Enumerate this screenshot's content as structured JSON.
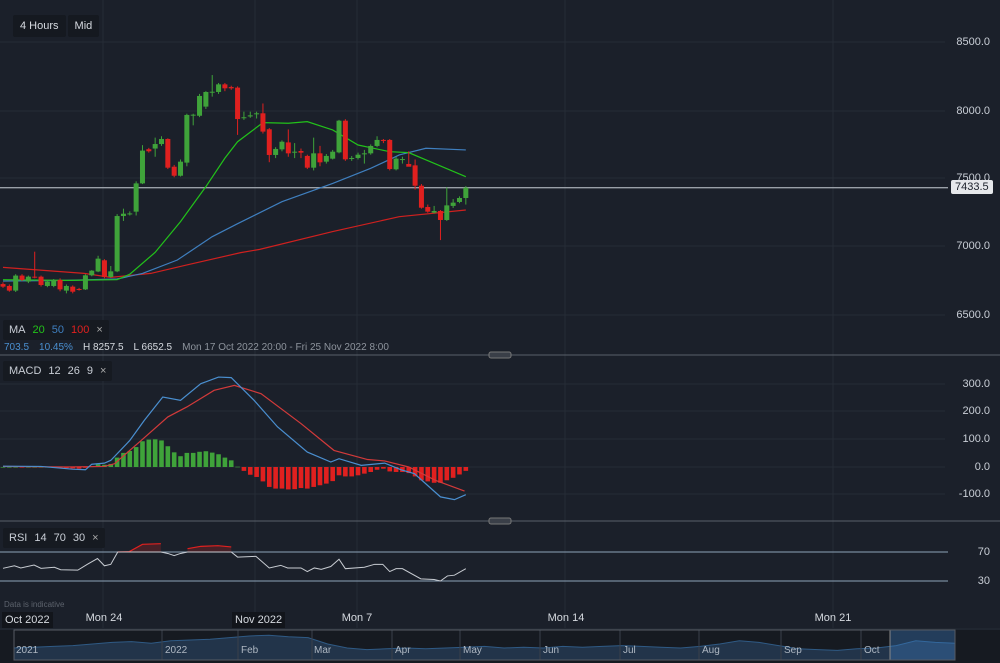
{
  "toolbar": {
    "interval": "4 Hours",
    "price_type": "Mid"
  },
  "ma_legend": {
    "label": "MA",
    "p1": "20",
    "p2": "50",
    "p3": "100",
    "close": "×"
  },
  "info": {
    "change": "703.5",
    "change_pct": "10.45%",
    "high": "H 8257.5",
    "low": "L 6652.5",
    "range": "Mon 17 Oct 2022 20:00 - Fri 25 Nov 2022 8:00"
  },
  "macd_legend": {
    "label": "MACD",
    "fast": "12",
    "slow": "26",
    "signal": "9",
    "close": "×"
  },
  "rsi_legend": {
    "label": "RSI",
    "period": "14",
    "upper": "70",
    "lower": "30",
    "close": "×"
  },
  "disclaimer": "Data is indicative",
  "price_axis": [
    "8500.0",
    "8000.0",
    "7500.0",
    "7000.0",
    "6500.0"
  ],
  "current_price": "7433.5",
  "macd_axis": [
    "300.0",
    "200.0",
    "100.0",
    "0.0",
    "-100.0"
  ],
  "rsi_axis": [
    "70",
    "30"
  ],
  "time_axis": [
    "Oct 2022",
    "Mon 24",
    "Nov 2022",
    "Mon 7",
    "Mon 14",
    "Mon 21"
  ],
  "navigator_labels": [
    "2021",
    "2022",
    "Feb",
    "Mar",
    "Apr",
    "May",
    "Jun",
    "Jul",
    "Aug",
    "Sep",
    "Oct"
  ],
  "colors": {
    "up": "#3fa33a",
    "down": "#e0201f",
    "ma20": "#22c21a",
    "ma50": "#3f7fbf",
    "ma100": "#d0201f",
    "macd": "#4a8fd0",
    "signal": "#d23a3a",
    "rsi": "#c8ccd2",
    "bg": "#1b202a"
  },
  "chart_data": {
    "type": "candlestick",
    "candles": [
      [
        6728,
        6740,
        6700,
        6709
      ],
      [
        6714,
        6725,
        6672,
        6680
      ],
      [
        6680,
        6800,
        6670,
        6790
      ],
      [
        6790,
        6800,
        6750,
        6758
      ],
      [
        6746,
        6790,
        6735,
        6782
      ],
      [
        6782,
        6965,
        6770,
        6778
      ],
      [
        6782,
        6790,
        6710,
        6721
      ],
      [
        6714,
        6755,
        6705,
        6746
      ],
      [
        6714,
        6765,
        6705,
        6758
      ],
      [
        6758,
        6770,
        6675,
        6689
      ],
      [
        6680,
        6725,
        6660,
        6714
      ],
      [
        6709,
        6718,
        6660,
        6672
      ],
      [
        6692,
        6700,
        6680,
        6689
      ],
      [
        6689,
        6800,
        6685,
        6792
      ],
      [
        6792,
        6830,
        6785,
        6826
      ],
      [
        6820,
        6935,
        6815,
        6914
      ],
      [
        6902,
        6910,
        6770,
        6780
      ],
      [
        6780,
        6860,
        6775,
        6821
      ],
      [
        6821,
        7240,
        6815,
        7226
      ],
      [
        7226,
        7280,
        7190,
        7243
      ],
      [
        7243,
        7260,
        7230,
        7245
      ],
      [
        7258,
        7480,
        7230,
        7465
      ],
      [
        7465,
        7745,
        7460,
        7705
      ],
      [
        7715,
        7725,
        7690,
        7700
      ],
      [
        7720,
        7800,
        7660,
        7753
      ],
      [
        7753,
        7810,
        7740,
        7790
      ],
      [
        7790,
        7795,
        7570,
        7580
      ],
      [
        7587,
        7600,
        7510,
        7521
      ],
      [
        7521,
        7640,
        7515,
        7624
      ],
      [
        7617,
        7975,
        7590,
        7966
      ],
      [
        7966,
        7975,
        7890,
        7968
      ],
      [
        7960,
        8120,
        7950,
        8105
      ],
      [
        8027,
        8140,
        8010,
        8134
      ],
      [
        8134,
        8258,
        8100,
        8136
      ],
      [
        8134,
        8200,
        8120,
        8190
      ],
      [
        8190,
        8200,
        8140,
        8161
      ],
      [
        8170,
        8180,
        8150,
        8161
      ],
      [
        8166,
        8175,
        7820,
        7936
      ],
      [
        7945,
        7990,
        7930,
        7949
      ],
      [
        7955,
        7990,
        7945,
        7963
      ],
      [
        7978,
        7990,
        7940,
        7978
      ],
      [
        7978,
        8050,
        7830,
        7844
      ],
      [
        7861,
        7870,
        7620,
        7673
      ],
      [
        7673,
        7730,
        7650,
        7717
      ],
      [
        7714,
        7780,
        7700,
        7770
      ],
      [
        7765,
        7860,
        7660,
        7685
      ],
      [
        7697,
        7760,
        7650,
        7697
      ],
      [
        7702,
        7720,
        7650,
        7690
      ],
      [
        7666,
        7675,
        7570,
        7580
      ],
      [
        7580,
        7800,
        7560,
        7685
      ],
      [
        7685,
        7740,
        7590,
        7619
      ],
      [
        7624,
        7680,
        7610,
        7666
      ],
      [
        7646,
        7710,
        7640,
        7697
      ],
      [
        7692,
        7930,
        7685,
        7924
      ],
      [
        7924,
        7935,
        7630,
        7641
      ],
      [
        7651,
        7665,
        7630,
        7651
      ],
      [
        7651,
        7690,
        7640,
        7675
      ],
      [
        7685,
        7710,
        7610,
        7685
      ],
      [
        7685,
        7750,
        7675,
        7739
      ],
      [
        7739,
        7810,
        7730,
        7783
      ],
      [
        7783,
        7790,
        7760,
        7778
      ],
      [
        7783,
        7790,
        7560,
        7570
      ],
      [
        7568,
        7660,
        7560,
        7646
      ],
      [
        7641,
        7660,
        7610,
        7643
      ],
      [
        7607,
        7700,
        7595,
        7587
      ],
      [
        7597,
        7640,
        7420,
        7448
      ],
      [
        7448,
        7460,
        7280,
        7287
      ],
      [
        7292,
        7310,
        7250,
        7258
      ],
      [
        7251,
        7300,
        7245,
        7263
      ],
      [
        7263,
        7270,
        7050,
        7197
      ],
      [
        7197,
        7436,
        7190,
        7304
      ],
      [
        7300,
        7350,
        7285,
        7324
      ],
      [
        7329,
        7370,
        7320,
        7358
      ],
      [
        7358,
        7445,
        7310,
        7433.5
      ]
    ],
    "ma20": [
      [
        0,
        6760
      ],
      [
        10,
        6755
      ],
      [
        18,
        6760
      ],
      [
        20,
        6800
      ],
      [
        24,
        6960
      ],
      [
        28,
        7185
      ],
      [
        32,
        7441
      ],
      [
        35,
        7650
      ],
      [
        37,
        7770
      ],
      [
        41,
        7910
      ],
      [
        45,
        7905
      ],
      [
        48,
        7917
      ],
      [
        52,
        7856
      ],
      [
        56,
        7746
      ],
      [
        61,
        7697
      ],
      [
        64,
        7690
      ],
      [
        68,
        7612
      ],
      [
        73,
        7514
      ]
    ],
    "ma50": [
      [
        0,
        6750
      ],
      [
        10,
        6755
      ],
      [
        18,
        6765
      ],
      [
        22,
        6806
      ],
      [
        27.5,
        6904
      ],
      [
        33,
        7075
      ],
      [
        37,
        7170
      ],
      [
        44,
        7331
      ],
      [
        52,
        7465
      ],
      [
        58,
        7575
      ],
      [
        62.5,
        7673
      ],
      [
        66.7,
        7722
      ],
      [
        73,
        7710
      ]
    ],
    "ma100": [
      [
        0,
        6850
      ],
      [
        12.8,
        6806
      ],
      [
        17,
        6777
      ],
      [
        23.3,
        6806
      ],
      [
        29,
        6868
      ],
      [
        37.5,
        6958
      ],
      [
        40.5,
        6982
      ],
      [
        52,
        7112
      ],
      [
        62.5,
        7221
      ],
      [
        73,
        7270
      ]
    ],
    "price_ylim": [
      6350,
      8700
    ],
    "macd": {
      "hist": [
        0,
        0,
        0,
        -1,
        0,
        0,
        0,
        0,
        -2,
        -3,
        -4,
        -5,
        -6,
        -3,
        2,
        10,
        8,
        11,
        34,
        51,
        58,
        72,
        93,
        99,
        100,
        96,
        75,
        53,
        39,
        51,
        51,
        55,
        57,
        52,
        46,
        34,
        24,
        1,
        -14,
        -28,
        -36,
        -52,
        -72,
        -78,
        -78,
        -81,
        -80,
        -76,
        -78,
        -72,
        -66,
        -60,
        -51,
        -30,
        -34,
        -34,
        -30,
        -24,
        -18,
        -10,
        -6,
        -16,
        -18,
        -18,
        -22,
        -34,
        -48,
        -52,
        -57,
        -57,
        -48,
        -39,
        -27,
        -14
      ],
      "macd_line": [
        [
          0,
          3
        ],
        [
          6,
          2
        ],
        [
          11,
          -8
        ],
        [
          13,
          -10
        ],
        [
          14,
          10
        ],
        [
          16,
          14
        ],
        [
          17,
          24
        ],
        [
          20,
          96
        ],
        [
          22.3,
          169
        ],
        [
          25.2,
          253
        ],
        [
          28,
          241
        ],
        [
          31.2,
          301
        ],
        [
          34,
          325
        ],
        [
          36,
          323
        ],
        [
          39.6,
          241
        ],
        [
          43.3,
          145
        ],
        [
          48,
          54
        ],
        [
          51.7,
          18
        ],
        [
          53,
          30
        ],
        [
          56.5,
          6
        ],
        [
          60.2,
          14
        ],
        [
          62.8,
          -10
        ],
        [
          64.9,
          -24
        ],
        [
          69,
          -108
        ],
        [
          71.2,
          -118
        ],
        [
          73,
          -100
        ]
      ],
      "signal_line": [
        [
          0,
          2
        ],
        [
          10,
          0
        ],
        [
          16,
          2
        ],
        [
          17.6,
          12
        ],
        [
          21.8,
          96
        ],
        [
          26,
          181
        ],
        [
          29,
          217
        ],
        [
          33.3,
          277
        ],
        [
          36.5,
          295
        ],
        [
          40.7,
          265
        ],
        [
          47,
          157
        ],
        [
          52.2,
          60
        ],
        [
          57.5,
          27
        ],
        [
          60.2,
          22
        ],
        [
          64,
          0
        ],
        [
          68.2,
          -48
        ],
        [
          72.8,
          -87
        ]
      ],
      "ylim": [
        -160,
        330
      ]
    },
    "rsi": {
      "values": [
        [
          0,
          47.5
        ],
        [
          1.8,
          51
        ],
        [
          2.8,
          48
        ],
        [
          4.9,
          52
        ],
        [
          6,
          47.5
        ],
        [
          8.1,
          49
        ],
        [
          9.1,
          45.6
        ],
        [
          11.8,
          45
        ],
        [
          13.3,
          53
        ],
        [
          14.9,
          61
        ],
        [
          16,
          51
        ],
        [
          17,
          53
        ],
        [
          18.1,
          70
        ],
        [
          19.9,
          70.5
        ],
        [
          22,
          80.6
        ],
        [
          24.9,
          81.5
        ],
        [
          26,
          68
        ],
        [
          27,
          65
        ],
        [
          28,
          68
        ],
        [
          29.1,
          74.6
        ],
        [
          31.2,
          77.8
        ],
        [
          33.9,
          78.7
        ],
        [
          36,
          77
        ],
        [
          37,
          63
        ],
        [
          39.9,
          64
        ],
        [
          42,
          48
        ],
        [
          43.8,
          51.6
        ],
        [
          44.9,
          48
        ],
        [
          47,
          48
        ],
        [
          48,
          43
        ],
        [
          49.1,
          48
        ],
        [
          50.2,
          46
        ],
        [
          51.7,
          50
        ],
        [
          53,
          60
        ],
        [
          54,
          47
        ],
        [
          57,
          49
        ],
        [
          58.6,
          53
        ],
        [
          59.9,
          53
        ],
        [
          61,
          43
        ],
        [
          62,
          47
        ],
        [
          63,
          47
        ],
        [
          65.9,
          33
        ],
        [
          68,
          32
        ],
        [
          69,
          30
        ],
        [
          70.1,
          37
        ],
        [
          71.2,
          38
        ],
        [
          73,
          47
        ]
      ],
      "upper": 70,
      "lower": 30
    },
    "navigator": [
      30,
      32,
      34,
      36,
      40,
      44,
      46,
      42,
      48,
      50,
      52,
      56,
      60,
      62,
      58,
      56,
      40,
      30,
      26,
      28,
      30,
      28,
      30,
      32,
      34,
      30,
      32,
      30,
      34,
      32,
      34,
      36,
      34,
      32,
      30,
      34,
      40,
      48,
      44,
      36,
      28,
      26,
      24,
      28,
      30,
      36,
      48,
      44,
      42
    ]
  }
}
